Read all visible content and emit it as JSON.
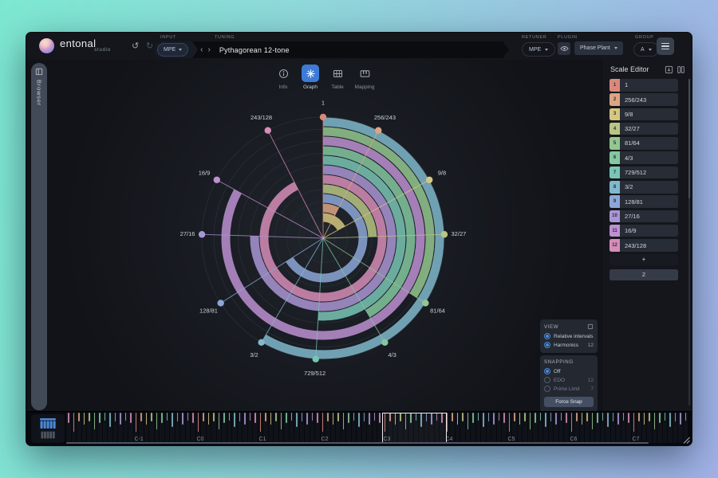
{
  "icons": {
    "prev": "‹",
    "next": "›",
    "undo": "↺",
    "redo": "↻"
  },
  "topbar": {
    "brand": "entonal",
    "brand_sub": "studio",
    "labels": {
      "input": "INPUT",
      "tuning": "TUNING",
      "retuner": "RETUNER",
      "plugin": "PLUGIN",
      "group": "GROUP"
    },
    "input_value": "MPE",
    "tuning_value": "Pythagorean 12-tone",
    "retuner_value": "MPE",
    "plugin_value": "Phase Plant",
    "group_value": "A"
  },
  "sidebar": {
    "browser_label": "Browser"
  },
  "tabs": [
    {
      "label": "Info",
      "icon": "info-icon",
      "active": false
    },
    {
      "label": "Graph",
      "icon": "graph-icon",
      "active": true
    },
    {
      "label": "Table",
      "icon": "table-icon",
      "active": false
    },
    {
      "label": "Mapping",
      "icon": "mapping-icon",
      "active": false
    }
  ],
  "scale_editor": {
    "title": "Scale Editor",
    "add_label": "+",
    "period_value": "2"
  },
  "view_panel": {
    "title": "VIEW",
    "options": [
      {
        "label": "Relative intervals",
        "selected": true,
        "value": ""
      },
      {
        "label": "Harmonics",
        "selected": true,
        "value": "12"
      }
    ]
  },
  "snapping_panel": {
    "title": "SNAPPING",
    "options": [
      {
        "label": "Off",
        "selected": true,
        "value": ""
      },
      {
        "label": "EDO",
        "selected": false,
        "value": "12"
      },
      {
        "label": "Prime Limit",
        "selected": false,
        "value": "7"
      }
    ],
    "button_label": "Force Snap"
  },
  "keyboard": {
    "octave_labels": [
      "C-1",
      "C0",
      "C1",
      "C2",
      "C3",
      "C4",
      "C5",
      "C6",
      "C7"
    ],
    "first_label_key_index": 13,
    "keys_per_octave": 12,
    "keys_total": 120,
    "highlighted_octave": "C3"
  },
  "colors": {
    "accent": "#4285d8"
  },
  "chart_data": {
    "type": "radial-interval-graph",
    "title": "Pythagorean 12-tone",
    "angle_mapping": "angle_deg = 360 * log2(ratio), clockwise from top",
    "grid_rings": 10,
    "period_ratio": "2",
    "intervals": [
      {
        "index": 1,
        "ratio": "1",
        "angle_deg": 0,
        "color": "#d9897c"
      },
      {
        "index": 2,
        "ratio": "256/243",
        "angle_deg": 27.1,
        "color": "#dda483"
      },
      {
        "index": 3,
        "ratio": "9/8",
        "angle_deg": 61.2,
        "color": "#d5c77f"
      },
      {
        "index": 4,
        "ratio": "32/27",
        "angle_deg": 88.2,
        "color": "#b9c584"
      },
      {
        "index": 5,
        "ratio": "81/64",
        "angle_deg": 122.4,
        "color": "#94c78f"
      },
      {
        "index": 6,
        "ratio": "4/3",
        "angle_deg": 149.4,
        "color": "#84c8a0"
      },
      {
        "index": 7,
        "ratio": "729/512",
        "angle_deg": 183.5,
        "color": "#79c5b5"
      },
      {
        "index": 8,
        "ratio": "3/2",
        "angle_deg": 210.6,
        "color": "#80b9cd"
      },
      {
        "index": 9,
        "ratio": "128/81",
        "angle_deg": 237.6,
        "color": "#8ca7d7"
      },
      {
        "index": 10,
        "ratio": "27/16",
        "angle_deg": 271.8,
        "color": "#a996d5"
      },
      {
        "index": 11,
        "ratio": "16/9",
        "angle_deg": 298.8,
        "color": "#bd90d1"
      },
      {
        "index": 12,
        "ratio": "243/128",
        "angle_deg": 332.9,
        "color": "#d78db9"
      }
    ],
    "arc_radius_order_outer_to_inner": [
      "3/2",
      "81/64",
      "16/9",
      "4/3",
      "729/512",
      "27/16",
      "243/128",
      "32/27",
      "128/81",
      "256/243",
      "9/8"
    ]
  }
}
